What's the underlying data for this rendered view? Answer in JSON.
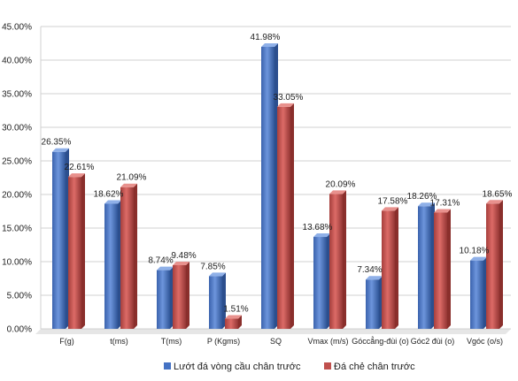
{
  "colors": {
    "series_1": "#4472C4",
    "series_2": "#C0504D",
    "grid": "#d0d0d0",
    "floor": "#e6e6e6"
  },
  "chart_data": {
    "type": "bar",
    "title": "",
    "xlabel": "",
    "ylabel": "",
    "ylim": [
      0,
      45
    ],
    "y_unit": "%",
    "y_ticks": [
      "0.00%",
      "5.00%",
      "10.00%",
      "15.00%",
      "20.00%",
      "25.00%",
      "30.00%",
      "35.00%",
      "40.00%",
      "45.00%"
    ],
    "grid": true,
    "legend_position": "bottom",
    "categories": [
      "F(g)",
      "t(ms)",
      "T(ms)",
      "P (Kgms)",
      "SQ",
      "Vmax (m/s)",
      "Góccẳng-đùi (o)",
      "Góc2 đùi (o)",
      "Vgóc (o/s)"
    ],
    "series": [
      {
        "name": "Lướt đá vòng cầu chân trước",
        "values": [
          26.35,
          18.62,
          8.74,
          7.85,
          41.98,
          13.68,
          7.34,
          18.26,
          10.18
        ],
        "labels": [
          "26.35%",
          "18.62%",
          "8.74%",
          "7.85%",
          "41.98%",
          "13.68%",
          "7.34%",
          "18.26%",
          "10.18%"
        ]
      },
      {
        "name": "Đá chẻ chân trước",
        "values": [
          22.61,
          21.09,
          9.48,
          1.51,
          33.05,
          20.09,
          17.58,
          17.31,
          18.65
        ],
        "labels": [
          "22.61%",
          "21.09%",
          "9.48%",
          "1.51%",
          "33.05%",
          "20.09%",
          "17.58%",
          "17.31%",
          "18.65%"
        ]
      }
    ]
  }
}
